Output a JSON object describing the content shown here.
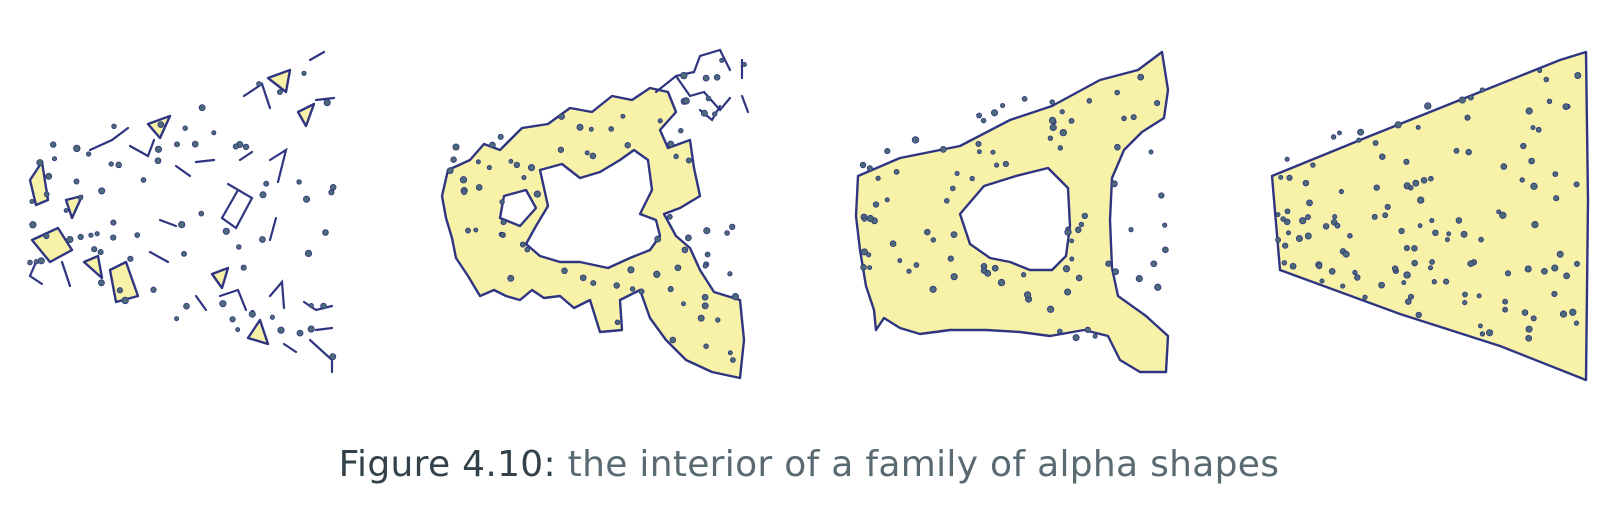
{
  "caption": {
    "label": "Figure 4.10:",
    "text": "the interior of a family of alpha shapes"
  },
  "colors": {
    "fill": "#f7f2a8",
    "outline": "#2f3580",
    "dot": "#4c6a78"
  }
}
